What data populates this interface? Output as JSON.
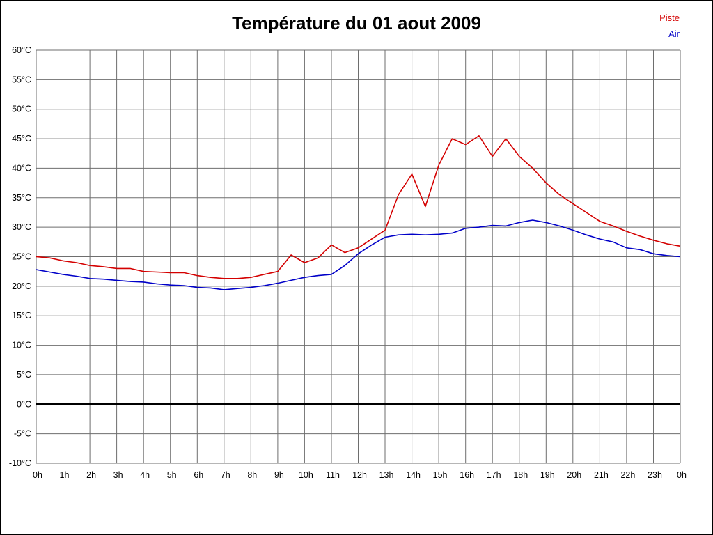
{
  "chart_data": {
    "type": "line",
    "title": "Température du 01 aout 2009",
    "xlabel": "",
    "ylabel": "",
    "xlim": [
      0,
      24
    ],
    "ylim": [
      -10,
      60
    ],
    "grid": true,
    "legend_position": "top-right",
    "colors": {
      "grid": "#6e6e6e",
      "zero_line": "#000000",
      "background": "#ffffff",
      "border": "#000000",
      "piste": "#d40000",
      "air": "#0000c8"
    },
    "x": [
      0,
      0.5,
      1,
      1.5,
      2,
      2.5,
      3,
      3.5,
      4,
      4.5,
      5,
      5.5,
      6,
      6.5,
      7,
      7.5,
      8,
      8.5,
      9,
      9.5,
      10,
      10.5,
      11,
      11.5,
      12,
      12.5,
      13,
      13.5,
      14,
      14.5,
      15,
      15.5,
      16,
      16.5,
      17,
      17.5,
      18,
      18.5,
      19,
      19.5,
      20,
      20.5,
      21,
      21.5,
      22,
      22.5,
      23,
      23.5,
      24
    ],
    "xticks": [
      {
        "value": 0,
        "label": "0h"
      },
      {
        "value": 1,
        "label": "1h"
      },
      {
        "value": 2,
        "label": "2h"
      },
      {
        "value": 3,
        "label": "3h"
      },
      {
        "value": 4,
        "label": "4h"
      },
      {
        "value": 5,
        "label": "5h"
      },
      {
        "value": 6,
        "label": "6h"
      },
      {
        "value": 7,
        "label": "7h"
      },
      {
        "value": 8,
        "label": "8h"
      },
      {
        "value": 9,
        "label": "9h"
      },
      {
        "value": 10,
        "label": "10h"
      },
      {
        "value": 11,
        "label": "11h"
      },
      {
        "value": 12,
        "label": "12h"
      },
      {
        "value": 13,
        "label": "13h"
      },
      {
        "value": 14,
        "label": "14h"
      },
      {
        "value": 15,
        "label": "15h"
      },
      {
        "value": 16,
        "label": "16h"
      },
      {
        "value": 17,
        "label": "17h"
      },
      {
        "value": 18,
        "label": "18h"
      },
      {
        "value": 19,
        "label": "19h"
      },
      {
        "value": 20,
        "label": "20h"
      },
      {
        "value": 21,
        "label": "21h"
      },
      {
        "value": 22,
        "label": "22h"
      },
      {
        "value": 23,
        "label": "23h"
      },
      {
        "value": 24,
        "label": "0h"
      }
    ],
    "yticks": [
      {
        "value": 60,
        "label": "60°C"
      },
      {
        "value": 55,
        "label": "55°C"
      },
      {
        "value": 50,
        "label": "50°C"
      },
      {
        "value": 45,
        "label": "45°C"
      },
      {
        "value": 40,
        "label": "40°C"
      },
      {
        "value": 35,
        "label": "35°C"
      },
      {
        "value": 30,
        "label": "30°C"
      },
      {
        "value": 25,
        "label": "25°C"
      },
      {
        "value": 20,
        "label": "20°C"
      },
      {
        "value": 15,
        "label": "15°C"
      },
      {
        "value": 10,
        "label": "10°C"
      },
      {
        "value": 5,
        "label": "5°C"
      },
      {
        "value": 0,
        "label": "0°C"
      },
      {
        "value": -5,
        "label": "-5°C"
      },
      {
        "value": -10,
        "label": "-10°C"
      }
    ],
    "series": [
      {
        "name": "Piste",
        "color": "#d40000",
        "values": [
          25.0,
          24.8,
          24.3,
          24.0,
          23.5,
          23.3,
          23.0,
          23.0,
          22.5,
          22.4,
          22.3,
          22.3,
          21.8,
          21.5,
          21.3,
          21.3,
          21.5,
          22.0,
          22.5,
          25.3,
          24.0,
          24.8,
          27.0,
          25.7,
          26.5,
          28.0,
          29.5,
          35.5,
          39.0,
          33.5,
          40.5,
          45.0,
          44.0,
          45.5,
          42.0,
          45.0,
          42.0,
          40.0,
          37.5,
          35.5,
          34.0,
          32.5,
          31.0,
          30.2,
          29.3,
          28.5,
          27.8,
          27.2,
          26.8
        ]
      },
      {
        "name": "Air",
        "color": "#0000c8",
        "values": [
          22.8,
          22.4,
          22.0,
          21.7,
          21.3,
          21.2,
          21.0,
          20.8,
          20.7,
          20.4,
          20.2,
          20.1,
          19.8,
          19.7,
          19.4,
          19.6,
          19.8,
          20.1,
          20.5,
          21.0,
          21.5,
          21.8,
          22.0,
          23.5,
          25.5,
          27.0,
          28.3,
          28.7,
          28.8,
          28.7,
          28.8,
          29.0,
          29.8,
          30.0,
          30.3,
          30.2,
          30.8,
          31.2,
          30.8,
          30.2,
          29.5,
          28.7,
          28.0,
          27.5,
          26.5,
          26.2,
          25.5,
          25.2,
          25.0
        ]
      }
    ]
  }
}
